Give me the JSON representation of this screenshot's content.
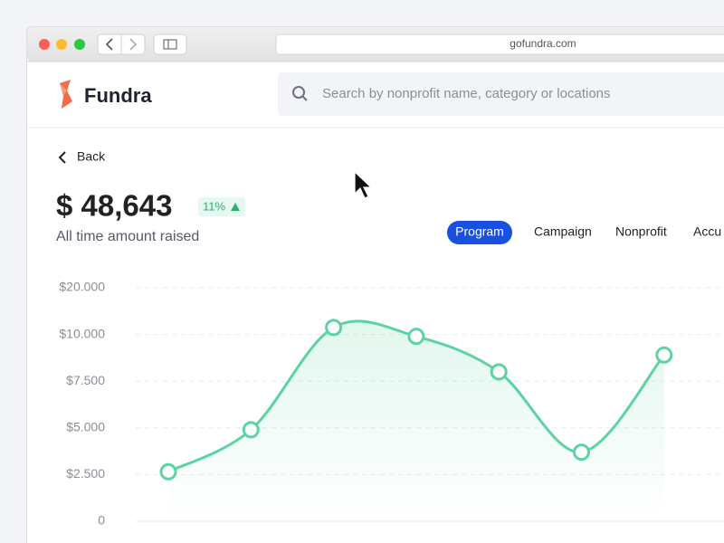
{
  "browser": {
    "url": "gofundra.com"
  },
  "header": {
    "brand": "Fundra",
    "search_placeholder": "Search by nonprofit name, category or locations"
  },
  "back": "Back",
  "summary": {
    "amount": "$ 48,643",
    "change": "11%",
    "caption": "All time amount raised"
  },
  "tabs": [
    "Program",
    "Campaign",
    "Nonprofit",
    "Accu"
  ],
  "chart_data": {
    "type": "line",
    "categories": [
      null,
      null,
      null,
      null,
      null,
      null,
      null
    ],
    "series": [
      {
        "name": null,
        "color": "#5dd3a3",
        "values": [
          2650,
          4900,
          11500,
          9900,
          8000,
          3700,
          8900
        ]
      }
    ],
    "ylim": [
      0,
      20000
    ],
    "yticks": [
      {
        "value": 0,
        "label": "0"
      },
      {
        "value": 2500,
        "label": "$2.500"
      },
      {
        "value": 5000,
        "label": "$5.000"
      },
      {
        "value": 7500,
        "label": "$7.500"
      },
      {
        "value": 10000,
        "label": "$10.000"
      },
      {
        "value": 20000,
        "label": "$20.000"
      }
    ],
    "grid": true
  }
}
